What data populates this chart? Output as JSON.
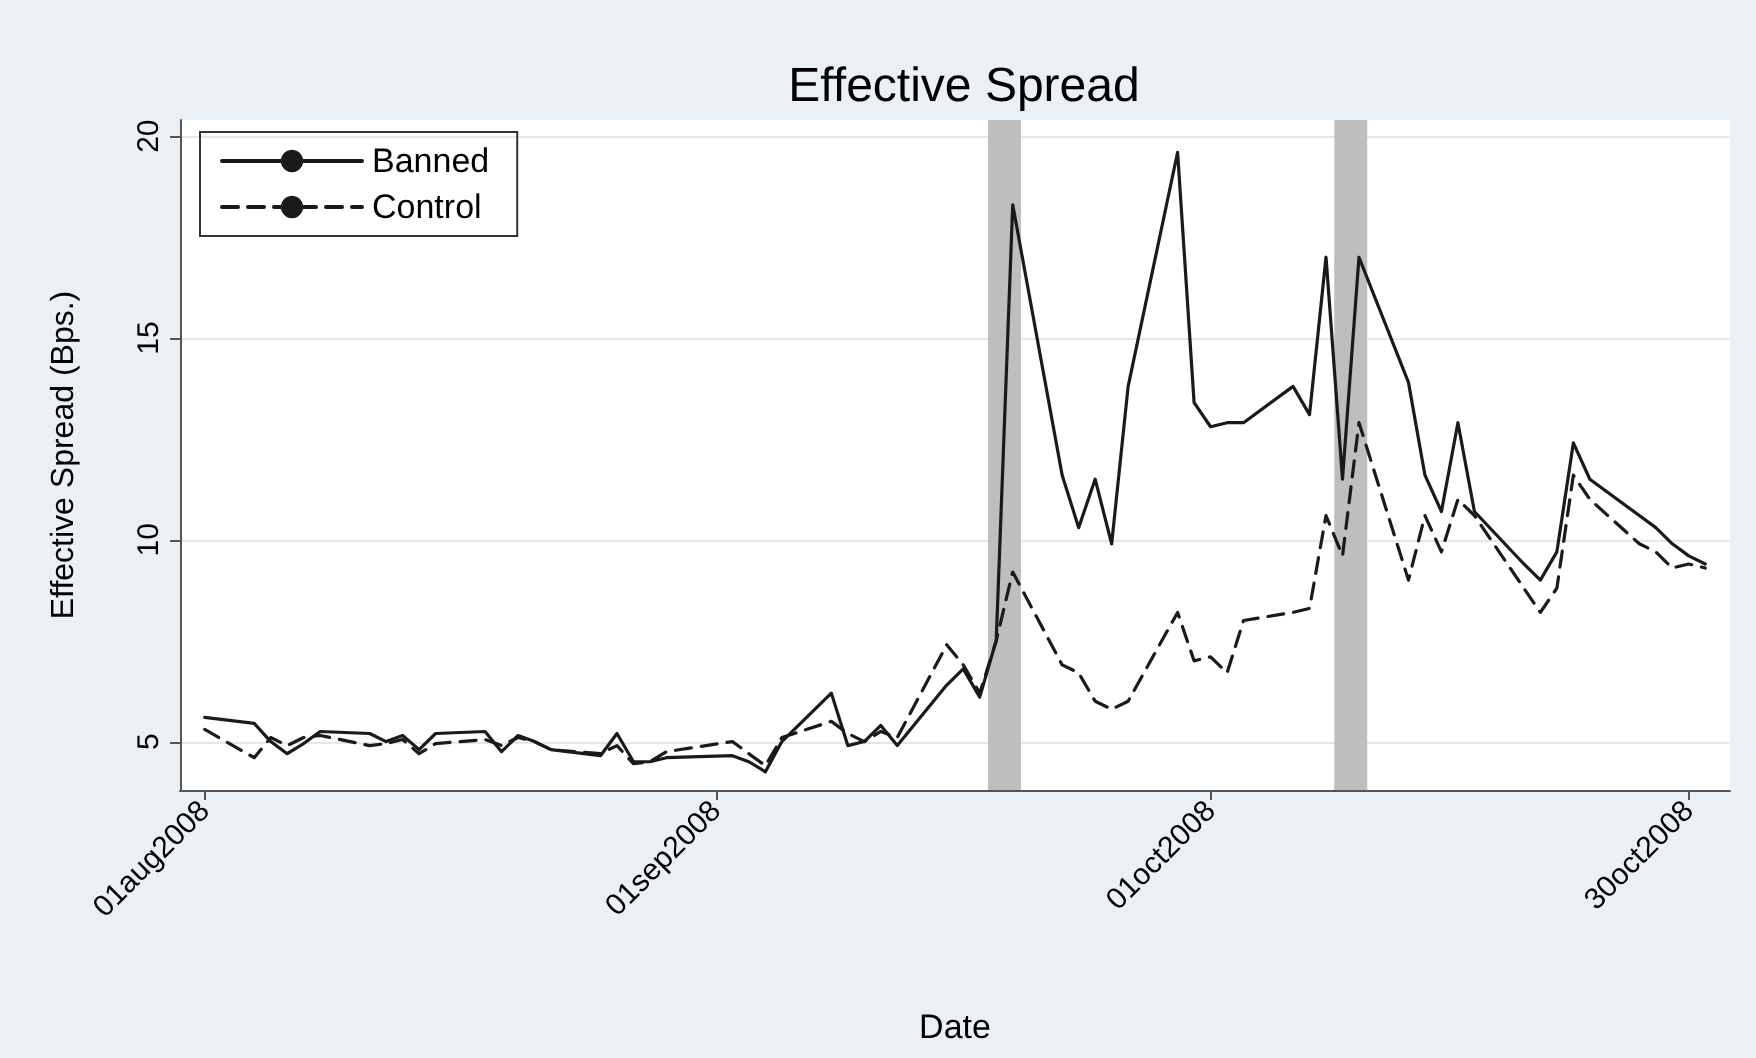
{
  "chart_data": {
    "type": "line",
    "title": "Effective Spread",
    "xlabel": "Date",
    "ylabel": "Effective Spread (Bps.)",
    "series": [
      {
        "name": "Banned",
        "color": "#1a1a1a",
        "line_style": "solid",
        "x": [
          "2008-08-01",
          "2008-08-04",
          "2008-08-05",
          "2008-08-06",
          "2008-08-07",
          "2008-08-08",
          "2008-08-11",
          "2008-08-12",
          "2008-08-13",
          "2008-08-14",
          "2008-08-15",
          "2008-08-18",
          "2008-08-19",
          "2008-08-20",
          "2008-08-21",
          "2008-08-22",
          "2008-08-25",
          "2008-08-26",
          "2008-08-27",
          "2008-08-28",
          "2008-08-29",
          "2008-09-02",
          "2008-09-03",
          "2008-09-04",
          "2008-09-05",
          "2008-09-08",
          "2008-09-09",
          "2008-09-10",
          "2008-09-11",
          "2008-09-12",
          "2008-09-15",
          "2008-09-16",
          "2008-09-17",
          "2008-09-18",
          "2008-09-19",
          "2008-09-22",
          "2008-09-23",
          "2008-09-24",
          "2008-09-25",
          "2008-09-26",
          "2008-09-29",
          "2008-09-30",
          "2008-10-01",
          "2008-10-02",
          "2008-10-03",
          "2008-10-06",
          "2008-10-07",
          "2008-10-08",
          "2008-10-09",
          "2008-10-10",
          "2008-10-13",
          "2008-10-14",
          "2008-10-15",
          "2008-10-16",
          "2008-10-17",
          "2008-10-20",
          "2008-10-21",
          "2008-10-22",
          "2008-10-23",
          "2008-10-24",
          "2008-10-27",
          "2008-10-28",
          "2008-10-29",
          "2008-10-30",
          "2008-10-31"
        ],
        "values": [
          5.6,
          5.45,
          5.0,
          4.7,
          4.95,
          5.25,
          5.2,
          5.0,
          5.15,
          4.8,
          5.2,
          5.25,
          4.75,
          5.15,
          5.0,
          4.8,
          4.65,
          5.2,
          4.5,
          4.5,
          4.6,
          4.65,
          4.5,
          4.25,
          5.0,
          6.2,
          4.9,
          5.0,
          5.4,
          4.9,
          6.4,
          6.8,
          6.1,
          7.5,
          18.3,
          11.6,
          10.3,
          11.5,
          9.9,
          13.8,
          19.6,
          13.4,
          12.8,
          12.9,
          12.9,
          13.8,
          13.1,
          17.0,
          11.5,
          17.0,
          13.9,
          11.6,
          10.7,
          12.9,
          10.7,
          9.4,
          9.0,
          9.7,
          12.4,
          11.5,
          10.6,
          10.3,
          9.9,
          9.6,
          9.4
        ]
      },
      {
        "name": "Control",
        "color": "#1a1a1a",
        "line_style": "dashed",
        "x": [
          "2008-08-01",
          "2008-08-04",
          "2008-08-05",
          "2008-08-06",
          "2008-08-07",
          "2008-08-08",
          "2008-08-11",
          "2008-08-12",
          "2008-08-13",
          "2008-08-14",
          "2008-08-15",
          "2008-08-18",
          "2008-08-19",
          "2008-08-20",
          "2008-08-21",
          "2008-08-22",
          "2008-08-25",
          "2008-08-26",
          "2008-08-27",
          "2008-08-28",
          "2008-08-29",
          "2008-09-02",
          "2008-09-03",
          "2008-09-04",
          "2008-09-05",
          "2008-09-08",
          "2008-09-09",
          "2008-09-10",
          "2008-09-11",
          "2008-09-12",
          "2008-09-15",
          "2008-09-16",
          "2008-09-17",
          "2008-09-18",
          "2008-09-19",
          "2008-09-22",
          "2008-09-23",
          "2008-09-24",
          "2008-09-25",
          "2008-09-26",
          "2008-09-29",
          "2008-09-30",
          "2008-10-01",
          "2008-10-02",
          "2008-10-03",
          "2008-10-06",
          "2008-10-07",
          "2008-10-08",
          "2008-10-09",
          "2008-10-10",
          "2008-10-13",
          "2008-10-14",
          "2008-10-15",
          "2008-10-16",
          "2008-10-17",
          "2008-10-20",
          "2008-10-21",
          "2008-10-22",
          "2008-10-23",
          "2008-10-24",
          "2008-10-27",
          "2008-10-28",
          "2008-10-29",
          "2008-10-30",
          "2008-10-31"
        ],
        "values": [
          5.3,
          4.6,
          5.1,
          4.9,
          5.1,
          5.15,
          4.9,
          4.95,
          5.05,
          4.7,
          4.95,
          5.05,
          4.9,
          5.1,
          5.0,
          4.8,
          4.7,
          4.9,
          4.45,
          4.5,
          4.75,
          5.0,
          4.7,
          4.4,
          5.1,
          5.5,
          5.2,
          5.0,
          5.25,
          5.1,
          7.4,
          6.9,
          6.2,
          7.5,
          9.2,
          6.9,
          6.7,
          6.0,
          5.8,
          6.0,
          8.2,
          7.0,
          7.1,
          6.7,
          8.0,
          8.2,
          8.3,
          10.6,
          9.6,
          12.9,
          9.0,
          10.6,
          9.7,
          11.0,
          10.6,
          8.8,
          8.2,
          8.8,
          11.6,
          11.0,
          9.9,
          9.7,
          9.3,
          9.4,
          9.3
        ]
      }
    ],
    "xlim": [
      "2008-07-30T12:00",
      "2008-11-01T12:00"
    ],
    "xticks": [
      {
        "value": "2008-08-01",
        "label": "01aug2008"
      },
      {
        "value": "2008-09-01",
        "label": "01sep2008"
      },
      {
        "value": "2008-10-01",
        "label": "01oct2008"
      },
      {
        "value": "2008-10-30",
        "label": "30oct2008"
      }
    ],
    "ylim": [
      3.8,
      20.4
    ],
    "yticks": [
      5,
      10,
      15,
      20
    ],
    "bands": [
      {
        "axis": "x",
        "from": "2008-09-17T12:00",
        "to": "2008-09-19T12:00",
        "color": "#bebebe"
      },
      {
        "axis": "x",
        "from": "2008-10-08T12:00",
        "to": "2008-10-10T12:00",
        "color": "#bebebe"
      }
    ],
    "grid": "y",
    "legend": "top left",
    "marker": "none"
  }
}
